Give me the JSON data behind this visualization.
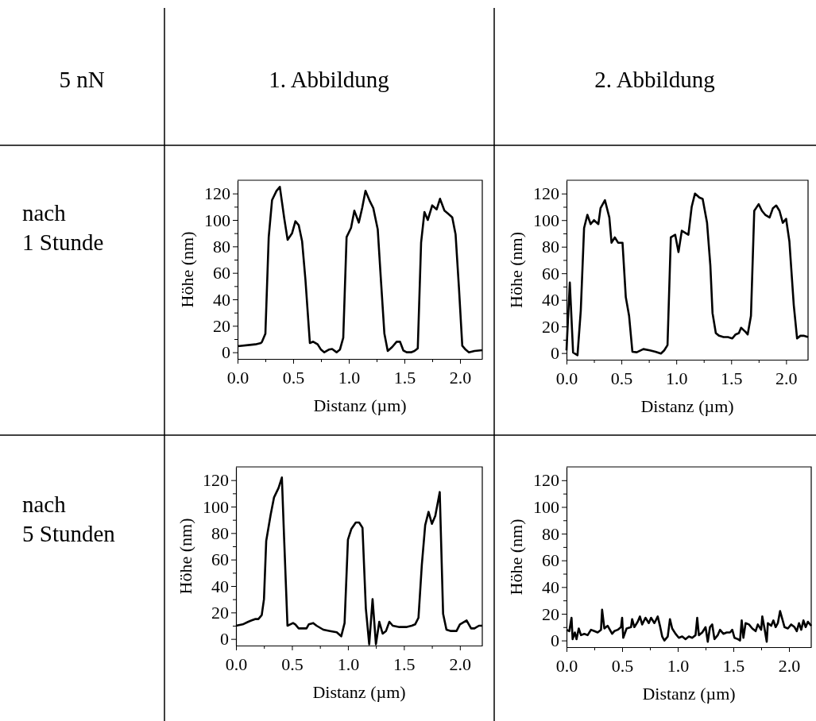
{
  "chart_data": [
    {
      "type": "other",
      "annotations": [
        "5 nN",
        "1. Abbildung",
        "2. Abbildung",
        "nach\n1 Stunde",
        "nach\n5 Stunden"
      ]
    },
    {
      "type": "line",
      "xlabel": "Distanz (µm)",
      "ylabel": "Höhe (nm)",
      "xlim": [
        0,
        2.2
      ],
      "ylim": [
        -5,
        130
      ],
      "xticks": [
        {
          "value": 0,
          "label": "0.0"
        },
        {
          "value": 0.25,
          "label": null
        },
        {
          "value": 0.5,
          "label": "0.5"
        },
        {
          "value": 0.75,
          "label": null
        },
        {
          "value": 1,
          "label": "1.0"
        },
        {
          "value": 1.25,
          "label": null
        },
        {
          "value": 1.5,
          "label": "1.5"
        },
        {
          "value": 1.75,
          "label": null
        },
        {
          "value": 2,
          "label": "2.0"
        }
      ],
      "yticks": [
        0,
        {
          "value": 10,
          "label": null
        },
        20,
        {
          "value": 30,
          "label": null
        },
        40,
        {
          "value": 50,
          "label": null
        },
        60,
        {
          "value": 70,
          "label": null
        },
        80,
        {
          "value": 90,
          "label": null
        },
        100,
        {
          "value": 110,
          "label": null
        },
        120
      ],
      "series": [
        {
          "color": "#000000",
          "x": [
            0,
            0.11,
            0.16,
            0.21,
            0.22,
            0.25,
            0.28,
            0.31,
            0.35,
            0.38,
            0.42,
            0.45,
            0.49,
            0.52,
            0.55,
            0.58,
            0.61,
            0.65,
            0.68,
            0.72,
            0.75,
            0.78,
            0.82,
            0.85,
            0.89,
            0.92,
            0.95,
            0.98,
            1.02,
            1.05,
            1.09,
            1.12,
            1.15,
            1.19,
            1.22,
            1.26,
            1.29,
            1.32,
            1.35,
            1.39,
            1.43,
            1.46,
            1.49,
            1.52,
            1.56,
            1.59,
            1.62,
            1.65,
            1.68,
            1.71,
            1.75,
            1.79,
            1.82,
            1.86,
            1.89,
            1.93,
            1.96,
            1.99,
            2.02,
            2.05,
            2.08,
            2.13,
            2.2
          ],
          "values": [
            4.6,
            5.6,
            6,
            7,
            8,
            14,
            87,
            115,
            122,
            125,
            101,
            85,
            90,
            99,
            96,
            84,
            55,
            7,
            8,
            6,
            2,
            0,
            2,
            2.5,
            0,
            2,
            11,
            87,
            94,
            107,
            98,
            109,
            122,
            114,
            109,
            93,
            53,
            14,
            1,
            4,
            8,
            8,
            1.4,
            0,
            0,
            1,
            3,
            83,
            106,
            100,
            111,
            108,
            116,
            107,
            105,
            102,
            89,
            49,
            5,
            2,
            0,
            1,
            1.6
          ]
        }
      ]
    },
    {
      "type": "line",
      "xlabel": "Distanz (µm)",
      "ylabel": "Höhe (nm)",
      "xlim": [
        0,
        2.2
      ],
      "ylim": [
        -5,
        130
      ],
      "xticks": [
        {
          "value": 0,
          "label": "0.0"
        },
        {
          "value": 0.25,
          "label": null
        },
        {
          "value": 0.5,
          "label": "0.5"
        },
        {
          "value": 0.75,
          "label": null
        },
        {
          "value": 1,
          "label": "1.0"
        },
        {
          "value": 1.25,
          "label": null
        },
        {
          "value": 1.5,
          "label": "1.5"
        },
        {
          "value": 1.75,
          "label": null
        },
        {
          "value": 2,
          "label": "2.0"
        }
      ],
      "yticks": [
        0,
        {
          "value": 10,
          "label": null
        },
        20,
        {
          "value": 30,
          "label": null
        },
        40,
        {
          "value": 50,
          "label": null
        },
        60,
        {
          "value": 70,
          "label": null
        },
        80,
        {
          "value": 90,
          "label": null
        },
        100,
        {
          "value": 110,
          "label": null
        },
        120
      ],
      "series": [
        {
          "color": "#000000",
          "x": [
            0,
            0.03,
            0.06,
            0.1,
            0.13,
            0.16,
            0.19,
            0.22,
            0.25,
            0.29,
            0.31,
            0.35,
            0.39,
            0.41,
            0.44,
            0.47,
            0.51,
            0.54,
            0.57,
            0.6,
            0.64,
            0.7,
            0.76,
            0.81,
            0.86,
            0.89,
            0.92,
            0.95,
            0.99,
            1.02,
            1.05,
            1.11,
            1.14,
            1.17,
            1.21,
            1.24,
            1.28,
            1.31,
            1.33,
            1.36,
            1.39,
            1.43,
            1.47,
            1.51,
            1.54,
            1.57,
            1.59,
            1.63,
            1.65,
            1.68,
            1.71,
            1.75,
            1.78,
            1.81,
            1.85,
            1.88,
            1.91,
            1.94,
            1.97,
            2.0,
            2.03,
            2.07,
            2.1,
            2.13,
            2.16,
            2.2
          ],
          "values": [
            2,
            53,
            0.4,
            -1.6,
            32,
            94,
            104,
            97,
            100,
            97,
            109,
            115,
            102,
            83,
            87,
            83,
            83,
            42,
            28,
            1,
            0.6,
            3,
            2,
            1,
            -0.4,
            2,
            6,
            87,
            89,
            76,
            92,
            89,
            110,
            120,
            117,
            116,
            98,
            66,
            30,
            15,
            13,
            12,
            12,
            11,
            14,
            15,
            19,
            16,
            14,
            28,
            107,
            112,
            107,
            104,
            102,
            109,
            111,
            107,
            98,
            101,
            84,
            36,
            11,
            13,
            13,
            12
          ]
        }
      ]
    },
    {
      "type": "line",
      "xlabel": "Distanz (µm)",
      "ylabel": "Höhe (nm)",
      "xlim": [
        0,
        2.2
      ],
      "ylim": [
        -5,
        130
      ],
      "xticks": [
        {
          "value": 0,
          "label": "0.0"
        },
        {
          "value": 0.25,
          "label": null
        },
        {
          "value": 0.5,
          "label": "0.5"
        },
        {
          "value": 0.75,
          "label": null
        },
        {
          "value": 1,
          "label": "1.0"
        },
        {
          "value": 1.25,
          "label": null
        },
        {
          "value": 1.5,
          "label": "1.5"
        },
        {
          "value": 1.75,
          "label": null
        },
        {
          "value": 2,
          "label": "2.0"
        }
      ],
      "yticks": [
        0,
        {
          "value": 10,
          "label": null
        },
        20,
        {
          "value": 30,
          "label": null
        },
        40,
        {
          "value": 50,
          "label": null
        },
        60,
        {
          "value": 70,
          "label": null
        },
        80,
        {
          "value": 90,
          "label": null
        },
        100,
        {
          "value": 110,
          "label": null
        },
        120
      ],
      "series": [
        {
          "color": "#000000",
          "x": [
            0,
            0.06,
            0.11,
            0.14,
            0.17,
            0.2,
            0.23,
            0.25,
            0.27,
            0.31,
            0.34,
            0.38,
            0.41,
            0.43,
            0.46,
            0.51,
            0.53,
            0.56,
            0.63,
            0.65,
            0.69,
            0.72,
            0.78,
            0.84,
            0.9,
            0.94,
            0.97,
            1.0,
            1.03,
            1.07,
            1.1,
            1.13,
            1.16,
            1.19,
            1.22,
            1.25,
            1.28,
            1.31,
            1.34,
            1.37,
            1.4,
            1.46,
            1.52,
            1.57,
            1.6,
            1.63,
            1.66,
            1.69,
            1.72,
            1.75,
            1.78,
            1.82,
            1.85,
            1.88,
            1.92,
            1.97,
            2.0,
            2.06,
            2.1,
            2.13,
            2.17,
            2.2
          ],
          "values": [
            10,
            11,
            13,
            14,
            15,
            15,
            18,
            30,
            74,
            94,
            107,
            114,
            122,
            76,
            10,
            12,
            11,
            8,
            8,
            11,
            12,
            10,
            7,
            6,
            5,
            2,
            12,
            75,
            83,
            88,
            88,
            84,
            23,
            -4,
            30,
            -4,
            13,
            4,
            6,
            13,
            10,
            9,
            9,
            10,
            11,
            16,
            56,
            86,
            96,
            87,
            93,
            111,
            19,
            7,
            6,
            6,
            11,
            14,
            8,
            8,
            10,
            10
          ]
        }
      ]
    },
    {
      "type": "line",
      "xlabel": "Distanz (µm)",
      "ylabel": "Höhe (nm)",
      "xlim": [
        0,
        2.2
      ],
      "ylim": [
        -5,
        130
      ],
      "xticks": [
        {
          "value": 0,
          "label": "0.0"
        },
        {
          "value": 0.25,
          "label": null
        },
        {
          "value": 0.5,
          "label": "0.5"
        },
        {
          "value": 0.75,
          "label": null
        },
        {
          "value": 1,
          "label": "1.0"
        },
        {
          "value": 1.25,
          "label": null
        },
        {
          "value": 1.5,
          "label": "1.5"
        },
        {
          "value": 1.75,
          "label": null
        },
        {
          "value": 2,
          "label": "2.0"
        }
      ],
      "yticks": [
        0,
        {
          "value": 10,
          "label": null
        },
        20,
        {
          "value": 30,
          "label": null
        },
        40,
        {
          "value": 50,
          "label": null
        },
        60,
        {
          "value": 70,
          "label": null
        },
        80,
        {
          "value": 90,
          "label": null
        },
        100,
        {
          "value": 110,
          "label": null
        },
        120
      ],
      "series": [
        {
          "color": "#000000",
          "x": [
            0,
            0.025,
            0.045,
            0.055,
            0.075,
            0.09,
            0.11,
            0.13,
            0.16,
            0.19,
            0.22,
            0.25,
            0.28,
            0.31,
            0.32,
            0.34,
            0.37,
            0.39,
            0.41,
            0.43,
            0.46,
            0.49,
            0.5,
            0.51,
            0.54,
            0.58,
            0.59,
            0.61,
            0.64,
            0.66,
            0.68,
            0.71,
            0.74,
            0.76,
            0.79,
            0.82,
            0.84,
            0.86,
            0.88,
            0.91,
            0.93,
            0.95,
            0.98,
            1.01,
            1.04,
            1.07,
            1.1,
            1.13,
            1.16,
            1.175,
            1.19,
            1.22,
            1.25,
            1.27,
            1.29,
            1.31,
            1.33,
            1.36,
            1.38,
            1.41,
            1.44,
            1.47,
            1.49,
            1.51,
            1.54,
            1.56,
            1.575,
            1.59,
            1.61,
            1.64,
            1.67,
            1.7,
            1.72,
            1.75,
            1.76,
            1.78,
            1.8,
            1.81,
            1.84,
            1.86,
            1.88,
            1.9,
            1.92,
            1.94,
            1.96,
            1.99,
            2.02,
            2.05,
            2.07,
            2.09,
            2.11,
            2.13,
            2.15,
            2.17,
            2.2
          ],
          "values": [
            8,
            7,
            17,
            1,
            6,
            1,
            9,
            4,
            5,
            4,
            8,
            7,
            6,
            8,
            23,
            9,
            11,
            8,
            5,
            7,
            8,
            10,
            17,
            2,
            9,
            10,
            16,
            10,
            14,
            18,
            12,
            17,
            13,
            17,
            13,
            18,
            11,
            3,
            0,
            3,
            16,
            9,
            5,
            2,
            3,
            1,
            3,
            2,
            4,
            17,
            4,
            6,
            10,
            -1,
            10,
            12,
            1,
            4,
            8,
            5,
            6,
            6,
            8,
            2,
            1,
            0,
            15,
            2,
            13,
            12,
            9,
            7,
            12,
            8,
            18,
            9,
            -1,
            13,
            11,
            15,
            10,
            13,
            22,
            16,
            10,
            9,
            12,
            10,
            7,
            13,
            8,
            15,
            10,
            14,
            11
          ]
        }
      ]
    }
  ]
}
